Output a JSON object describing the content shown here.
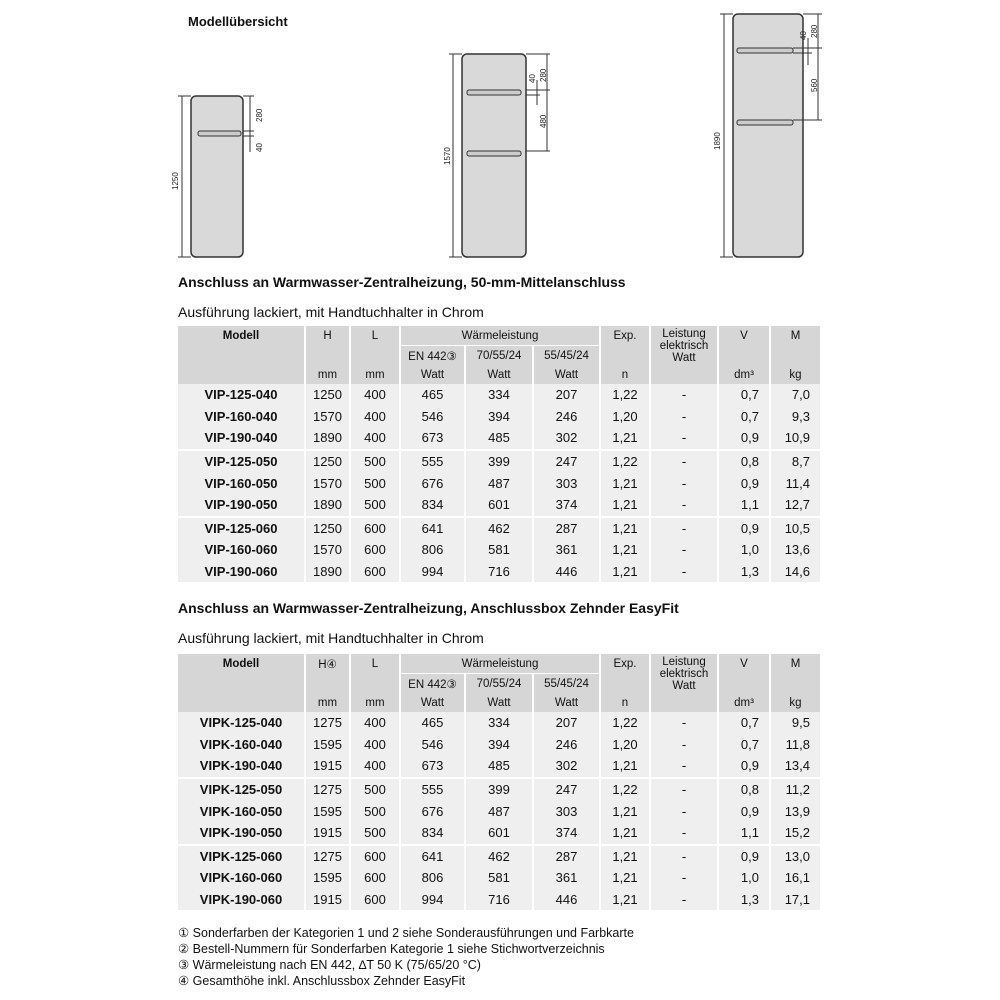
{
  "title": "Modellübersicht",
  "drawings": [
    {
      "height": "1250",
      "dims": [
        "280",
        "40"
      ]
    },
    {
      "height": "1570",
      "dims": [
        "40",
        "280",
        "480"
      ]
    },
    {
      "height": "1890",
      "dims": [
        "40",
        "280",
        "560"
      ]
    }
  ],
  "colors": {
    "header_bg": "#d6d6d6",
    "row_bg": "#efefef",
    "radiator": "#d9d9d9"
  },
  "headers": {
    "modell": "Modell",
    "h": "H",
    "h4": "H④",
    "l": "L",
    "waerme": "Wärmeleistung",
    "en": "EN 442③",
    "c70": "70/55/24",
    "c55": "55/45/24",
    "exp": "Exp.",
    "leistung": "Leistung elektrisch",
    "watt": "Watt",
    "v": "V",
    "m": "M",
    "mm": "mm",
    "n": "n",
    "dm3": "dm³",
    "kg": "kg"
  },
  "section1": {
    "heading": "Anschluss an Warmwasser-Zentralheizung, 50-mm-Mittelanschluss",
    "subheading": "Ausführung lackiert, mit Handtuchhalter in Chrom",
    "rows": [
      [
        "VIP-125-040",
        "1250",
        "400",
        "465",
        "334",
        "207",
        "1,22",
        "-",
        "0,7",
        "7,0"
      ],
      [
        "VIP-160-040",
        "1570",
        "400",
        "546",
        "394",
        "246",
        "1,20",
        "-",
        "0,7",
        "9,3"
      ],
      [
        "VIP-190-040",
        "1890",
        "400",
        "673",
        "485",
        "302",
        "1,21",
        "-",
        "0,9",
        "10,9"
      ],
      [
        "VIP-125-050",
        "1250",
        "500",
        "555",
        "399",
        "247",
        "1,22",
        "-",
        "0,8",
        "8,7"
      ],
      [
        "VIP-160-050",
        "1570",
        "500",
        "676",
        "487",
        "303",
        "1,21",
        "-",
        "0,9",
        "11,4"
      ],
      [
        "VIP-190-050",
        "1890",
        "500",
        "834",
        "601",
        "374",
        "1,21",
        "-",
        "1,1",
        "12,7"
      ],
      [
        "VIP-125-060",
        "1250",
        "600",
        "641",
        "462",
        "287",
        "1,21",
        "-",
        "0,9",
        "10,5"
      ],
      [
        "VIP-160-060",
        "1570",
        "600",
        "806",
        "581",
        "361",
        "1,21",
        "-",
        "1,0",
        "13,6"
      ],
      [
        "VIP-190-060",
        "1890",
        "600",
        "994",
        "716",
        "446",
        "1,21",
        "-",
        "1,3",
        "14,6"
      ]
    ]
  },
  "section2": {
    "heading": "Anschluss an Warmwasser-Zentralheizung, Anschlussbox Zehnder EasyFit",
    "subheading": "Ausführung lackiert, mit Handtuchhalter in Chrom",
    "rows": [
      [
        "VIPK-125-040",
        "1275",
        "400",
        "465",
        "334",
        "207",
        "1,22",
        "-",
        "0,7",
        "9,5"
      ],
      [
        "VIPK-160-040",
        "1595",
        "400",
        "546",
        "394",
        "246",
        "1,20",
        "-",
        "0,7",
        "11,8"
      ],
      [
        "VIPK-190-040",
        "1915",
        "400",
        "673",
        "485",
        "302",
        "1,21",
        "-",
        "0,9",
        "13,4"
      ],
      [
        "VIPK-125-050",
        "1275",
        "500",
        "555",
        "399",
        "247",
        "1,22",
        "-",
        "0,8",
        "11,2"
      ],
      [
        "VIPK-160-050",
        "1595",
        "500",
        "676",
        "487",
        "303",
        "1,21",
        "-",
        "0,9",
        "13,9"
      ],
      [
        "VIPK-190-050",
        "1915",
        "500",
        "834",
        "601",
        "374",
        "1,21",
        "-",
        "1,1",
        "15,2"
      ],
      [
        "VIPK-125-060",
        "1275",
        "600",
        "641",
        "462",
        "287",
        "1,21",
        "-",
        "0,9",
        "13,0"
      ],
      [
        "VIPK-160-060",
        "1595",
        "600",
        "806",
        "581",
        "361",
        "1,21",
        "-",
        "1,0",
        "16,1"
      ],
      [
        "VIPK-190-060",
        "1915",
        "600",
        "994",
        "716",
        "446",
        "1,21",
        "-",
        "1,3",
        "17,1"
      ]
    ]
  },
  "footnotes": [
    "① Sonderfarben der Kategorien 1 und 2 siehe Sonderausführungen und Farbkarte",
    "② Bestell-Nummern für Sonderfarben Kategorie 1 siehe Stichwortverzeichnis",
    "③ Wärmeleistung nach EN 442, ∆T 50 K (75/65/20 °C)",
    "④ Gesamthöhe inkl. Anschlussbox Zehnder EasyFit"
  ]
}
